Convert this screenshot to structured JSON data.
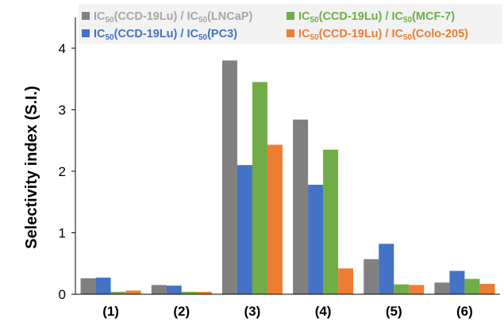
{
  "chart_data": {
    "type": "bar",
    "title": "",
    "xlabel": "",
    "ylabel": "Selectivity index (S.I.)",
    "ylim": [
      0,
      4.5
    ],
    "yticks": [
      "0",
      "1",
      "2",
      "3",
      "4"
    ],
    "grid": false,
    "legend_position": "top",
    "categories": [
      "(1)",
      "(2)",
      "(3)",
      "(4)",
      "(5)",
      "(6)"
    ],
    "series": [
      {
        "name": "IC50(CCD-19Lu) / IC50(LNCaP)",
        "legend": {
          "a": "IC",
          "a_sub": "50",
          "b": "(CCD-19Lu) / IC",
          "b_sub": "50",
          "c": "(LNCaP)"
        },
        "color": "#808080",
        "values": [
          0.26,
          0.15,
          3.8,
          2.84,
          0.57,
          0.19
        ]
      },
      {
        "name": "IC50(CCD-19Lu) / IC50(PC3)",
        "legend": {
          "a": "IC",
          "a_sub": "50",
          "b": "(CCD-19Lu) / IC",
          "b_sub": "50",
          "c": "(PC3)"
        },
        "color": "#4472C4",
        "values": [
          0.27,
          0.14,
          2.1,
          1.78,
          0.82,
          0.38
        ]
      },
      {
        "name": "IC50(CCD-19Lu) / IC50(MCF-7)",
        "legend": {
          "a": "IC",
          "a_sub": "50",
          "b": "(CCD-19Lu) / IC",
          "b_sub": "50",
          "c": "(MCF-7)"
        },
        "color": "#70AD47",
        "values": [
          0.04,
          0.04,
          3.45,
          2.35,
          0.16,
          0.25
        ]
      },
      {
        "name": "IC50(CCD-19Lu) / IC50(Colo-205)",
        "legend": {
          "a": "IC",
          "a_sub": "50",
          "b": "(CCD-19Lu) / IC",
          "b_sub": "50",
          "c": "(Colo-205)"
        },
        "color": "#ED7D31",
        "values": [
          0.06,
          0.04,
          2.43,
          0.42,
          0.15,
          0.17
        ]
      }
    ]
  }
}
